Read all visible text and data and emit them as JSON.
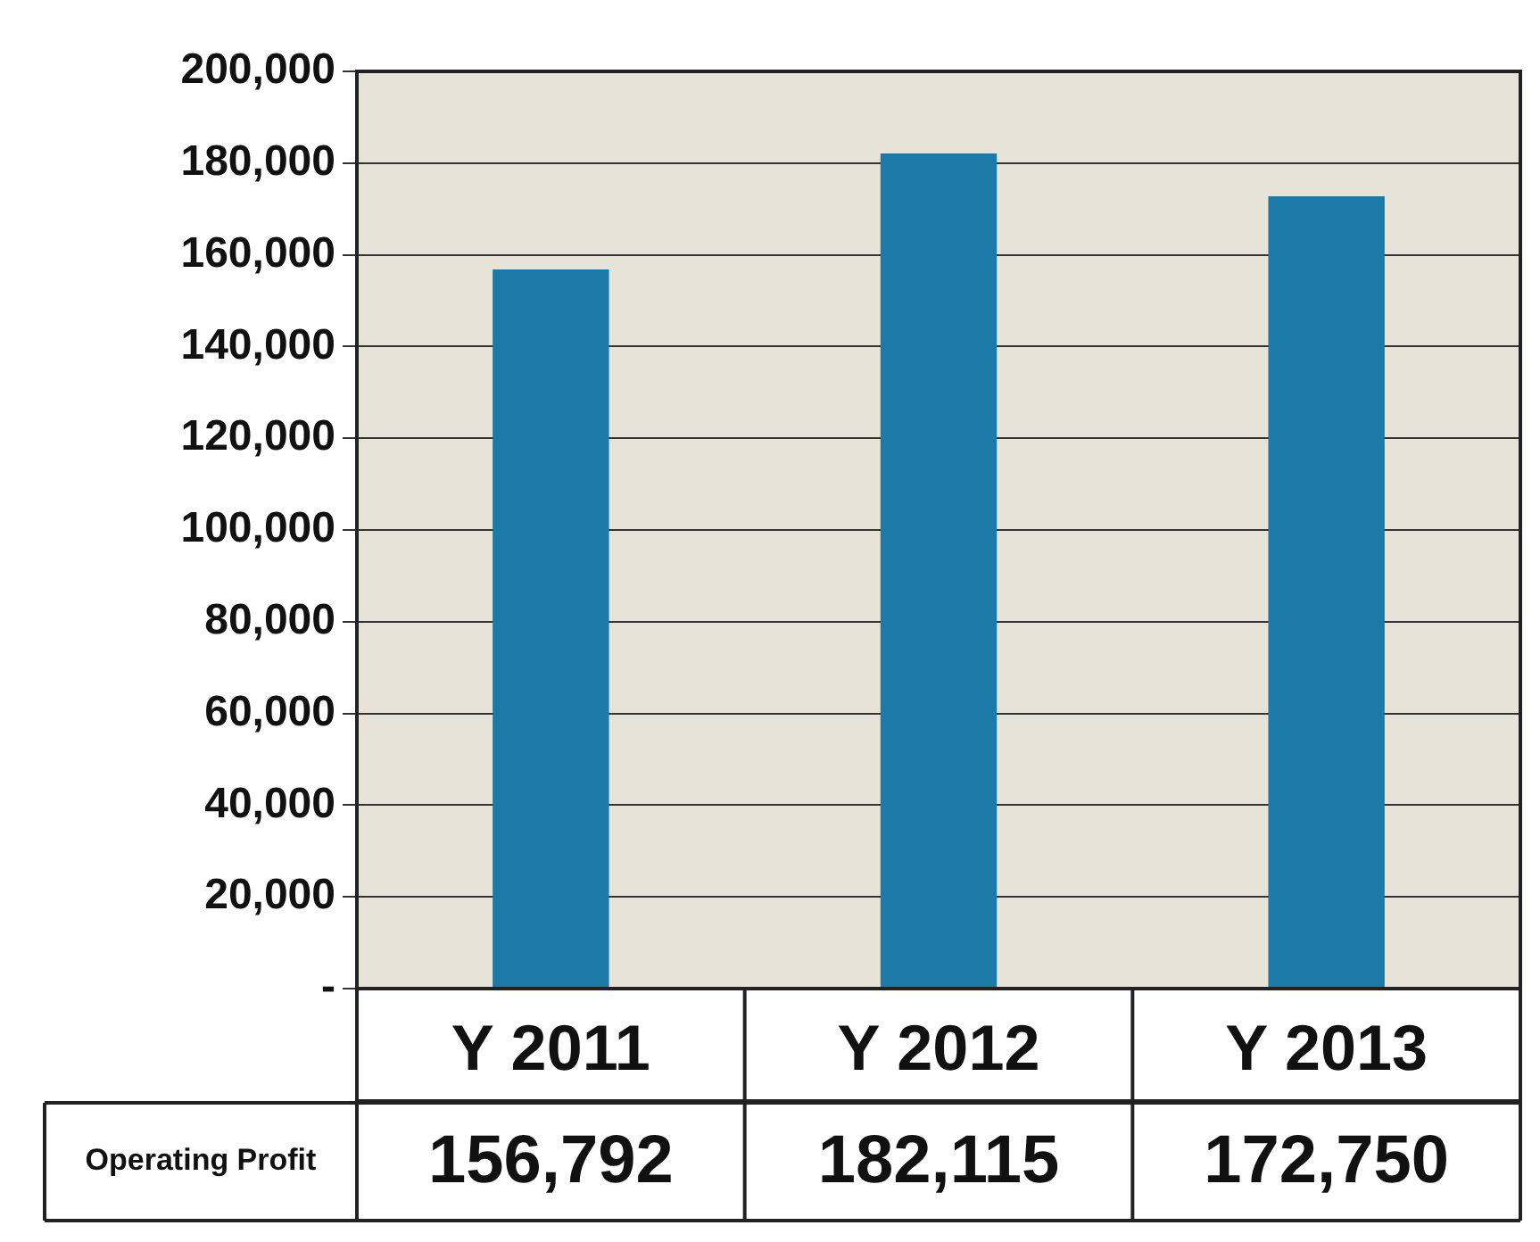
{
  "chart_data": {
    "type": "bar",
    "categories": [
      "Y 2011",
      "Y 2012",
      "Y 2013"
    ],
    "series": [
      {
        "name": "Operating Profit",
        "color": "#1b7aa8",
        "values": [
          156792,
          182115,
          172750
        ],
        "value_labels": [
          "156,792",
          "182,115",
          "172,750"
        ]
      }
    ],
    "ylim": [
      0,
      200000
    ],
    "yticks": [
      {
        "value": 0,
        "label": "-"
      },
      {
        "value": 20000,
        "label": "20,000"
      },
      {
        "value": 40000,
        "label": "40,000"
      },
      {
        "value": 60000,
        "label": "60,000"
      },
      {
        "value": 80000,
        "label": "80,000"
      },
      {
        "value": 100000,
        "label": "100,000"
      },
      {
        "value": 120000,
        "label": "120,000"
      },
      {
        "value": 140000,
        "label": "140,000"
      },
      {
        "value": 160000,
        "label": "160,000"
      },
      {
        "value": 180000,
        "label": "180,000"
      },
      {
        "value": 200000,
        "label": "200,000"
      }
    ],
    "grid": "y",
    "legend": false
  }
}
